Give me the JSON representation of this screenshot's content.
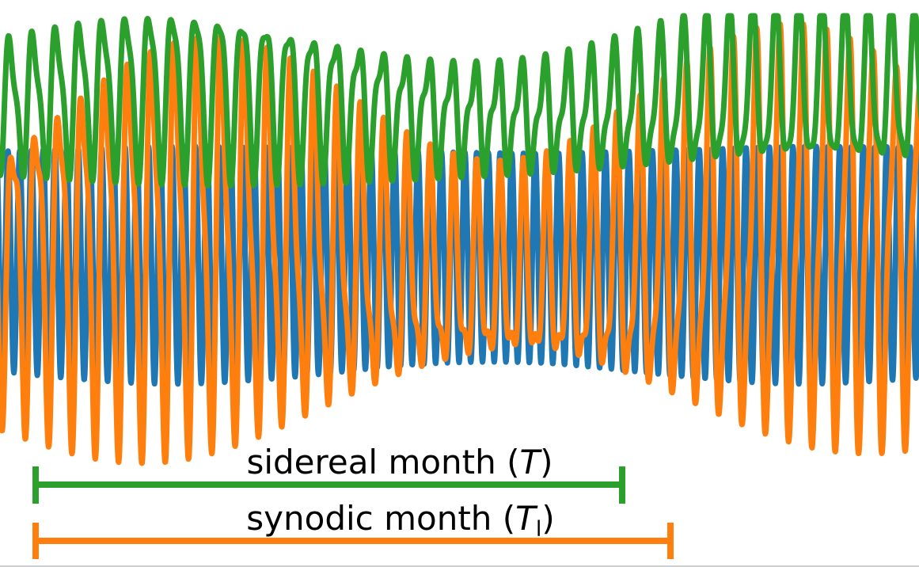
{
  "chart_data": {
    "type": "line",
    "title": "",
    "xlabel": "",
    "ylabel": "",
    "grid": false,
    "legend": "none",
    "series": [
      {
        "color": "#1f77b4",
        "stroke": "blue"
      },
      {
        "color": "#ff7f0e",
        "stroke": "orange"
      },
      {
        "color": "#2ca02c",
        "stroke": "green"
      }
    ],
    "annotations": [
      {
        "text": "sidereal month (",
        "var": "T",
        "close": ")",
        "color": "#2ca02c",
        "span": "shorter"
      },
      {
        "text": "synodic month (",
        "var": "T",
        "sub": "l",
        "close": ")",
        "color": "#ff7f0e",
        "span": "longer"
      }
    ]
  }
}
